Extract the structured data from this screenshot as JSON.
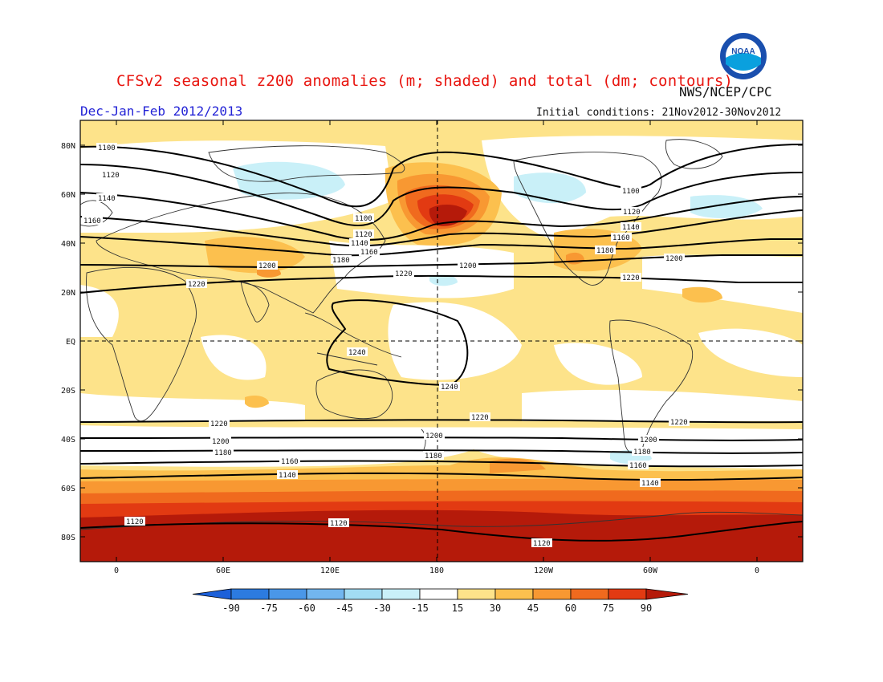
{
  "header": {
    "title": "CFSv2 seasonal z200 anomalies (m; shaded) and total (dm; contours)",
    "season": "Dec-Jan-Feb 2012/2013",
    "initial_conditions": "Initial conditions: 21Nov2012-30Nov2012",
    "agency": "NWS/NCEP/CPC",
    "logo_text": "NOAA"
  },
  "axes": {
    "lat_ticks": [
      "80N",
      "60N",
      "40N",
      "20N",
      "EQ",
      "20S",
      "40S",
      "60S",
      "80S"
    ],
    "lon_ticks": [
      "0",
      "60E",
      "120E",
      "180",
      "120W",
      "60W",
      "0"
    ]
  },
  "contours": {
    "labels": [
      "1100",
      "1120",
      "1140",
      "1160",
      "1180",
      "1200",
      "1220",
      "1240"
    ]
  },
  "colorbar": {
    "labels": [
      "-90",
      "-75",
      "-60",
      "-45",
      "-30",
      "-15",
      "15",
      "30",
      "45",
      "60",
      "75",
      "90"
    ],
    "colors": [
      "#1c60d9",
      "#2c7be0",
      "#4a97e8",
      "#72b6ef",
      "#a2dcf3",
      "#c9f0f8",
      "#ffffff",
      "#fde38a",
      "#fcc04e",
      "#f89832",
      "#f06a1e",
      "#e23a12",
      "#b51a0a"
    ]
  }
}
